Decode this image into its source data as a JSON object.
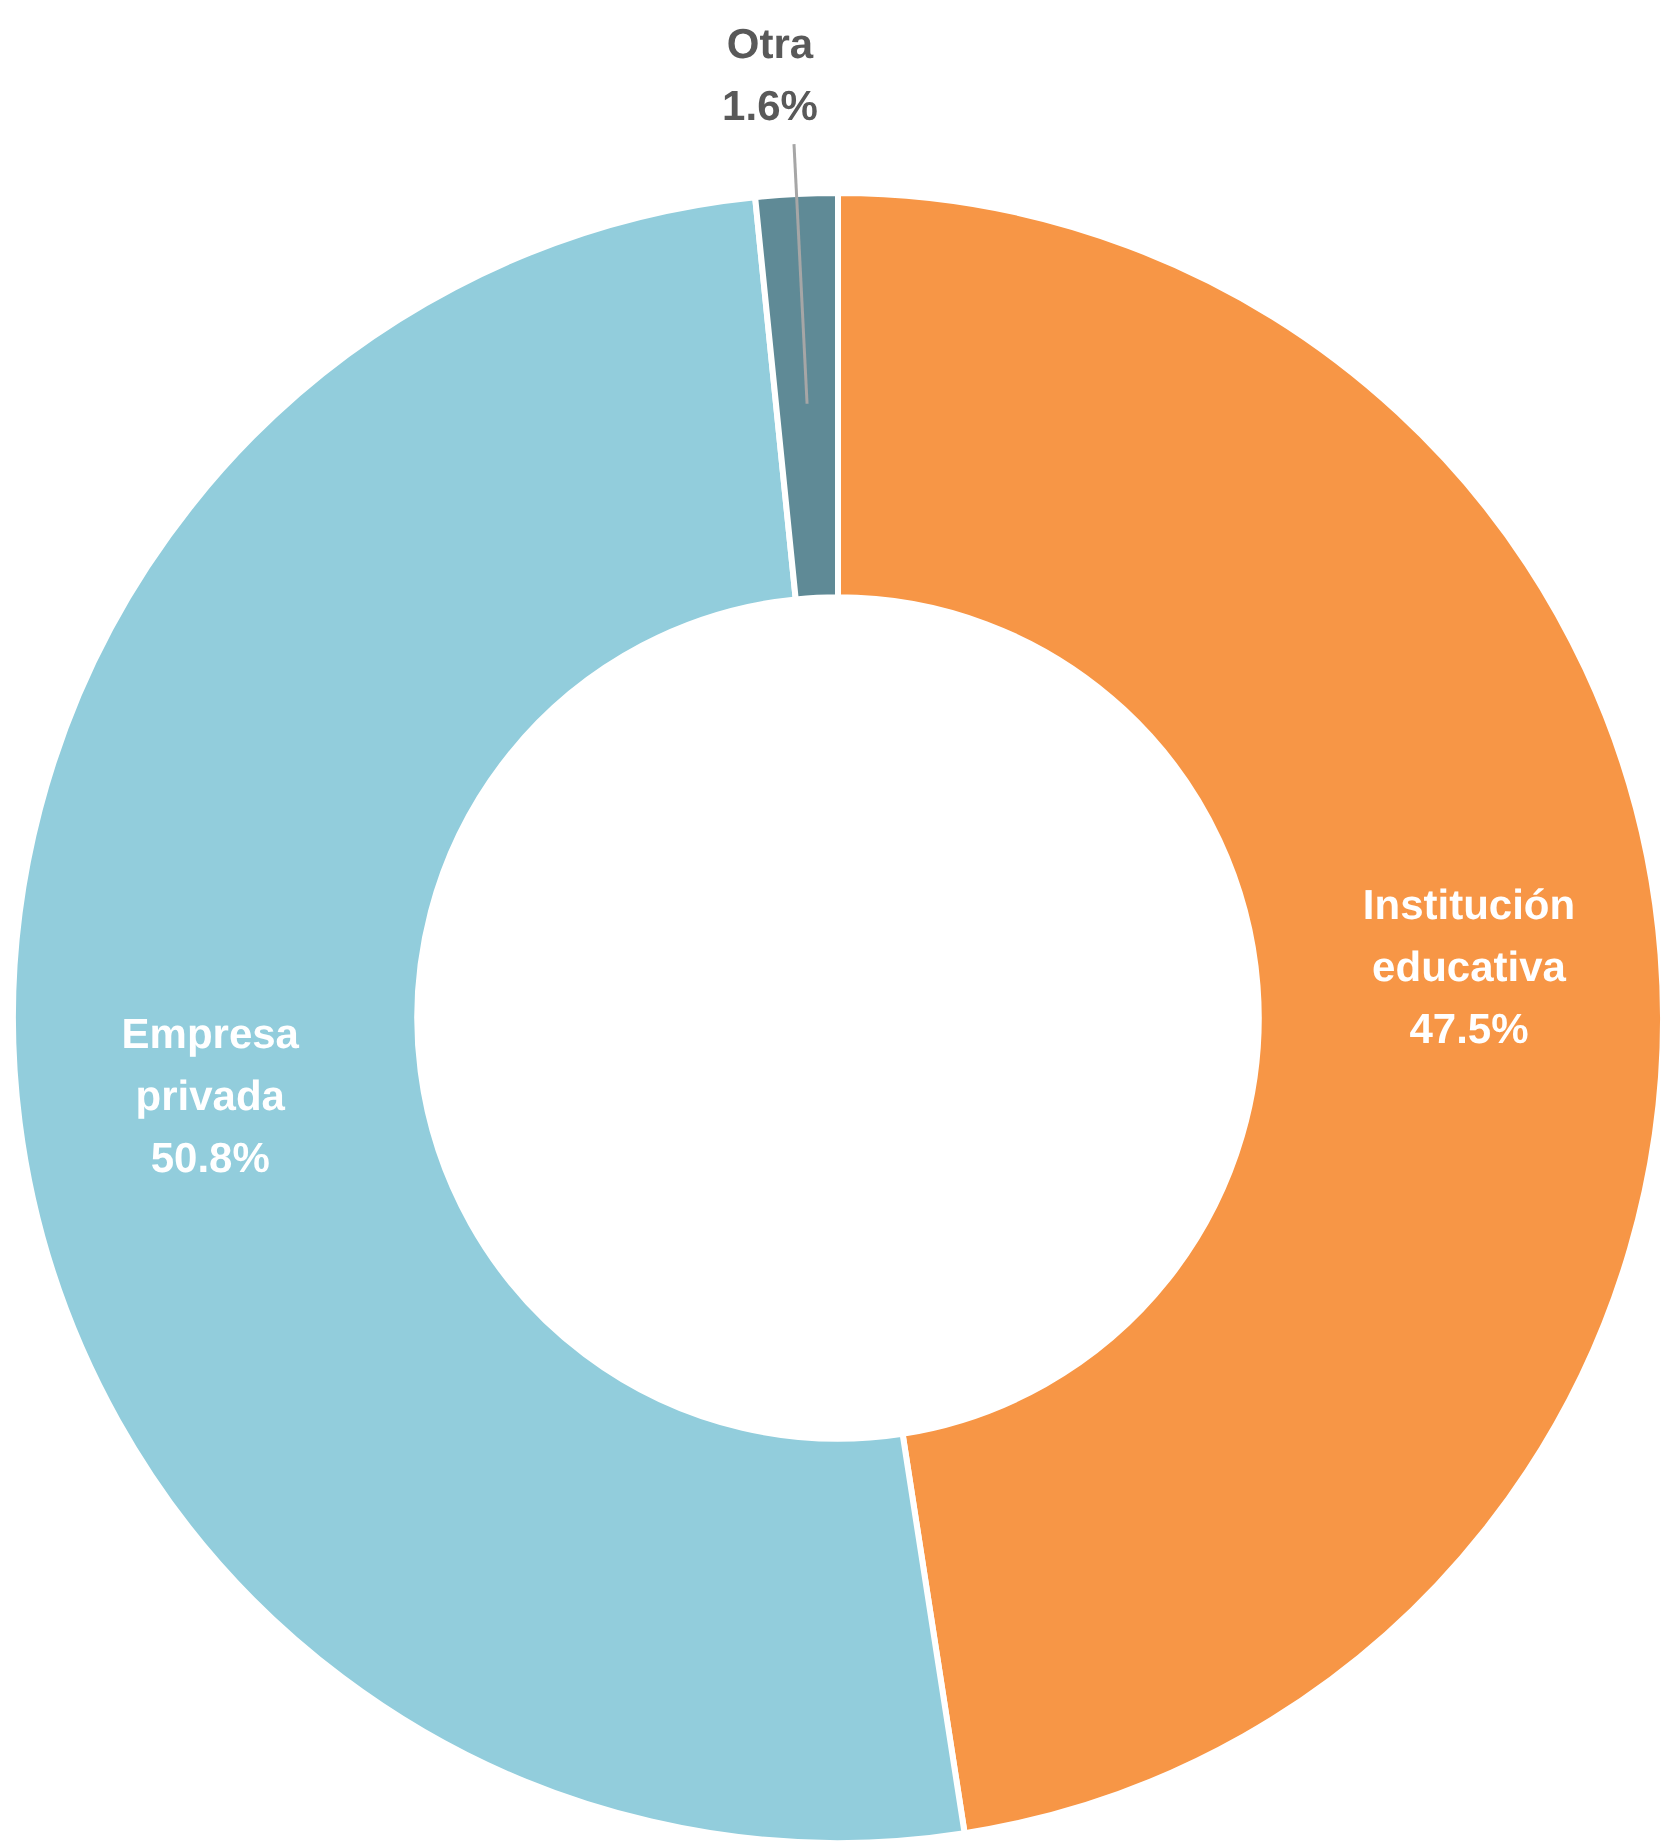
{
  "chart_data": {
    "type": "donut",
    "categories": [
      "Institución educativa",
      "Empresa privada",
      "Otra"
    ],
    "values": [
      47.5,
      50.8,
      1.6
    ],
    "colors": [
      "#f79646",
      "#92cddc",
      "#5f8a96"
    ],
    "value_labels": [
      "47.5%",
      "50.8%",
      "1.6%"
    ],
    "legend": false
  }
}
